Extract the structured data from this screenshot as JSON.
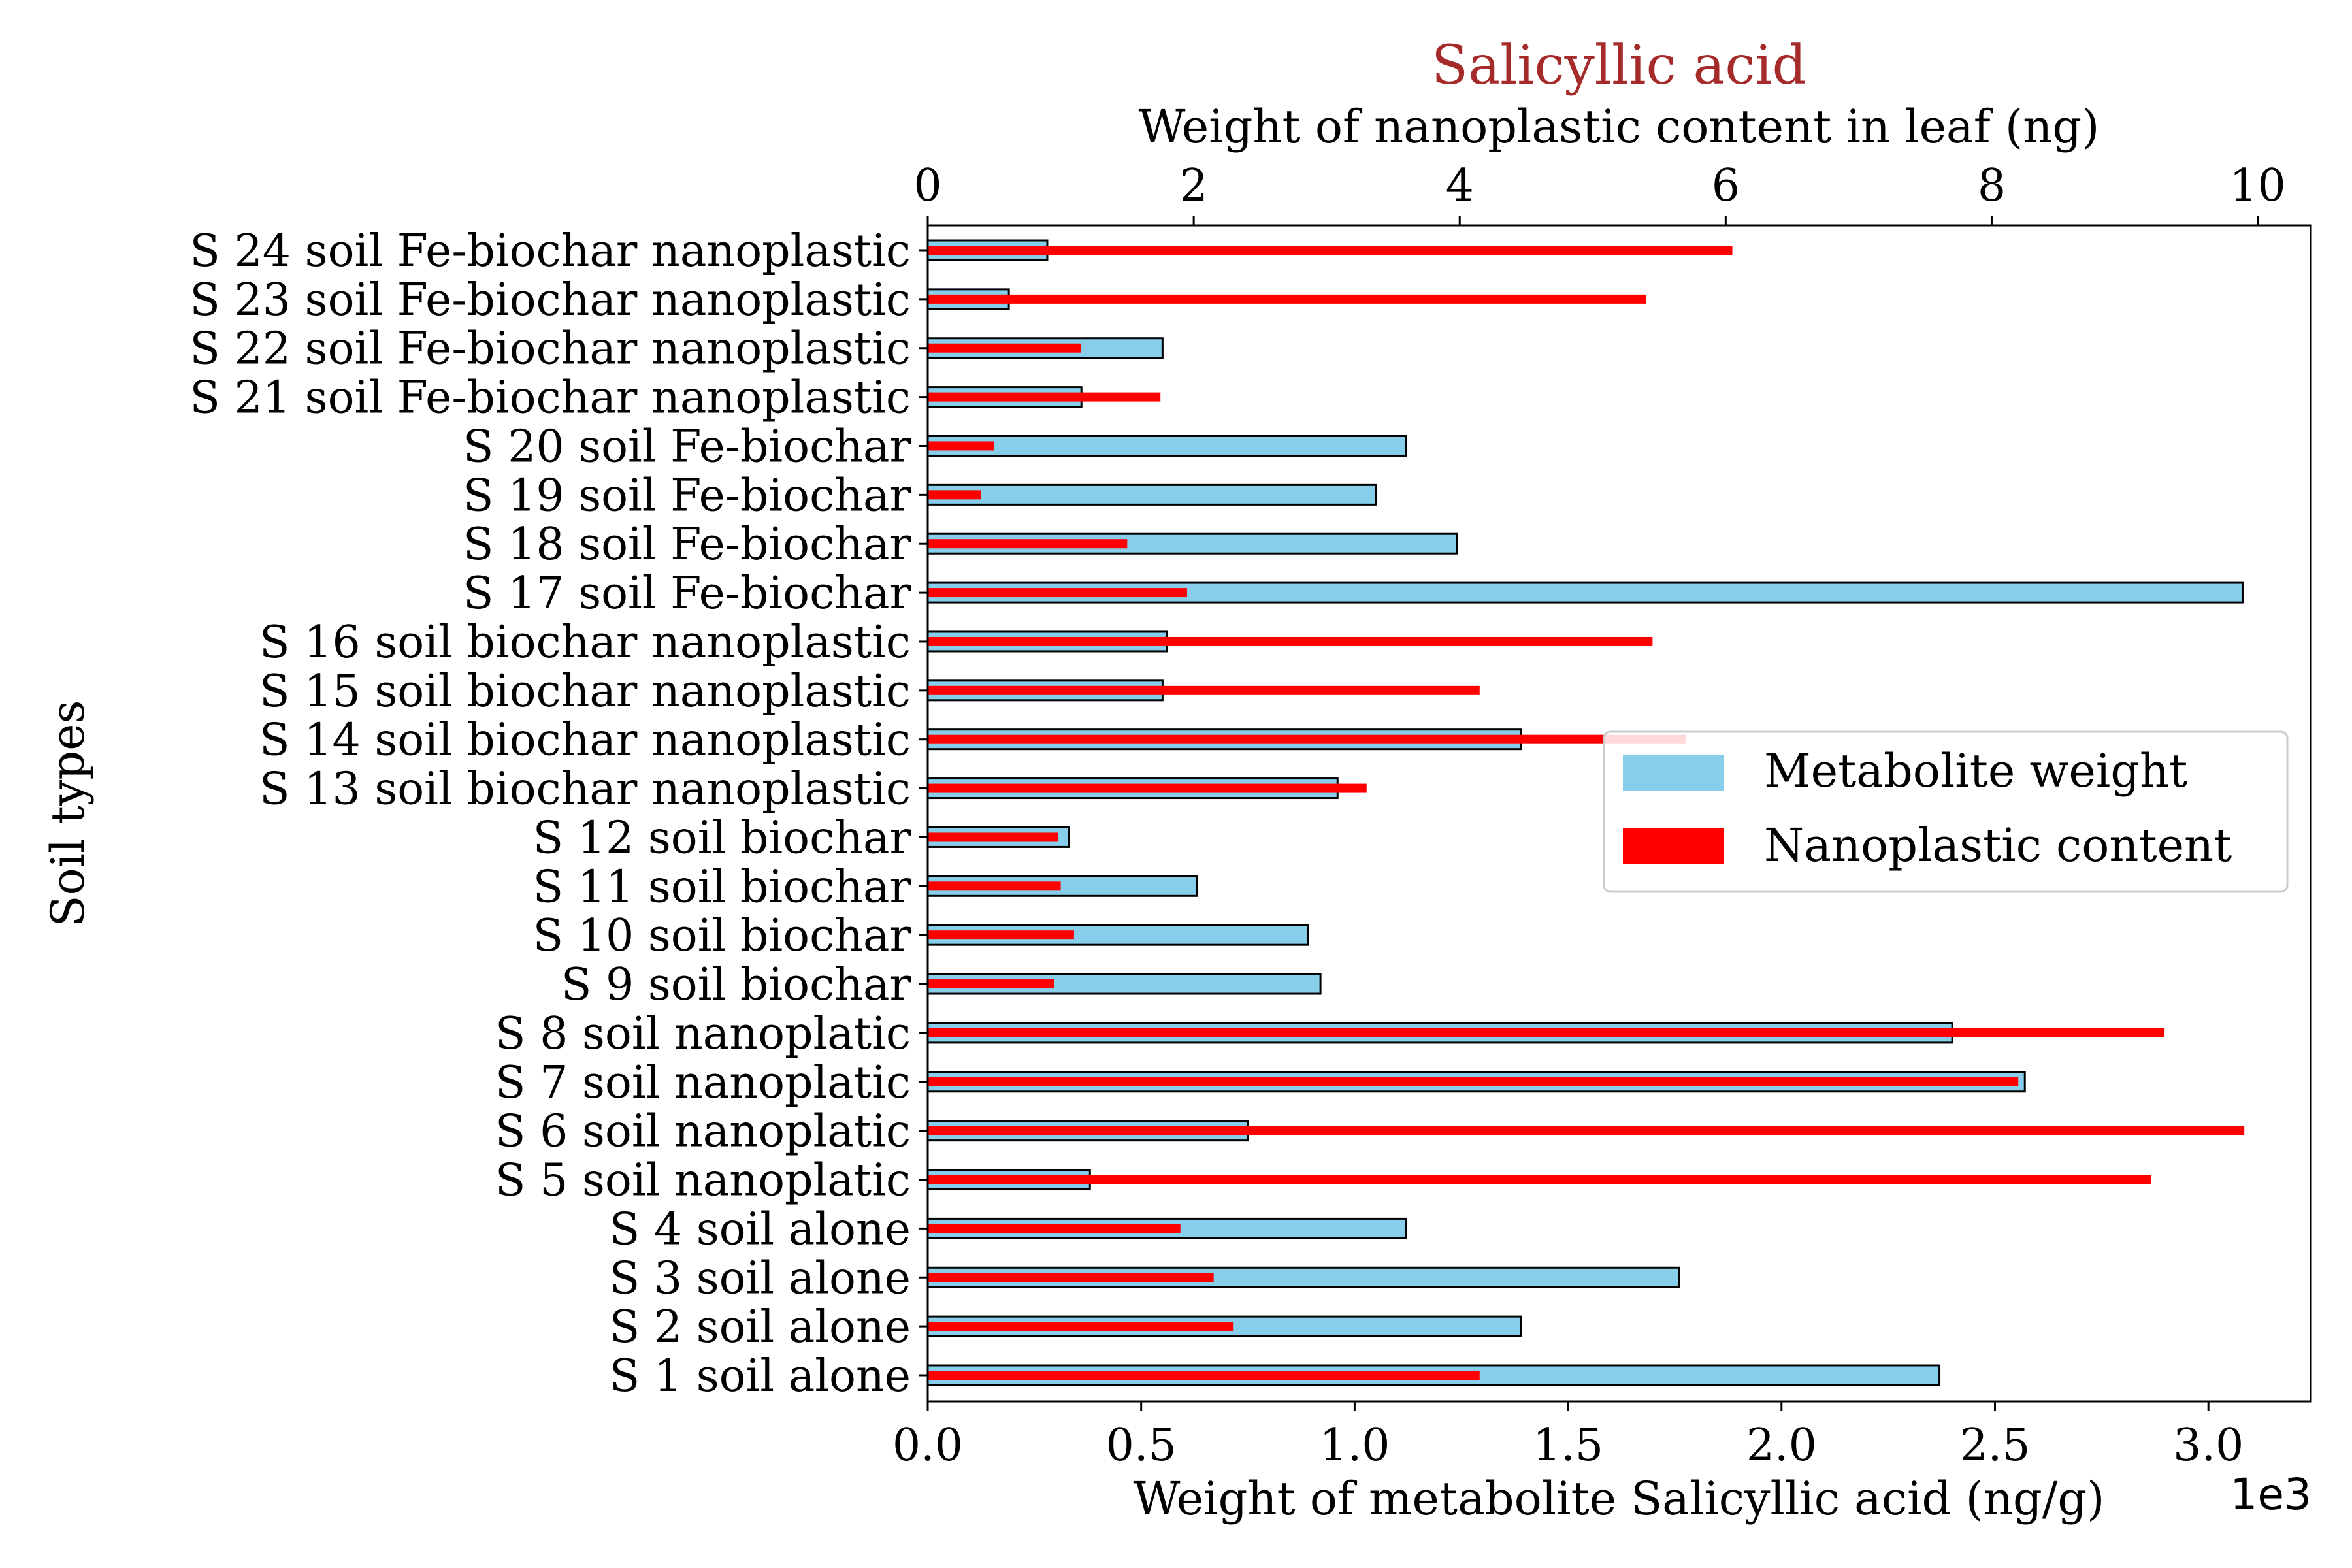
{
  "chart_data": {
    "type": "bar",
    "orientation": "horizontal",
    "title": "Salicyllic acid",
    "title_color": "#a52a2a",
    "xlabel_bottom": "Weight of metabolite Salicyllic acid (ng/g)",
    "xlabel_top": "Weight of nanoplastic content in leaf (ng)",
    "ylabel": "Soil types",
    "x_offset_label": "1e3",
    "xlim_bottom": [
      0,
      3.24
    ],
    "xlim_top": [
      0,
      10.4
    ],
    "xticks_bottom": [
      "0.0",
      "0.5",
      "1.0",
      "1.5",
      "2.0",
      "2.5",
      "3.0"
    ],
    "xticks_top": [
      "0",
      "2",
      "4",
      "6",
      "8",
      "10"
    ],
    "grid": false,
    "legend_position": "center-right",
    "categories": [
      "S 1 soil alone",
      "S 2 soil alone",
      "S 3 soil alone",
      "S 4 soil alone",
      "S 5 soil nanoplatic",
      "S 6 soil nanoplatic",
      "S 7 soil nanoplatic",
      "S 8 soil nanoplatic",
      "S 9 soil biochar",
      "S 10 soil biochar",
      "S 11 soil biochar",
      "S 12 soil biochar",
      "S 13 soil biochar nanoplastic",
      "S 14 soil biochar nanoplastic",
      "S 15 soil biochar nanoplastic",
      "S 16 soil biochar nanoplastic",
      "S 17 soil Fe-biochar",
      "S 18 soil Fe-biochar",
      "S 19 soil Fe-biochar",
      "S 20 soil Fe-biochar",
      "S 21 soil Fe-biochar nanoplastic",
      "S 22 soil Fe-biochar nanoplastic",
      "S 23 soil Fe-biochar nanoplastic",
      "S 24 soil Fe-biochar nanoplastic"
    ],
    "series": [
      {
        "name": "Metabolite weight",
        "axis": "bottom",
        "color": "#87ceeb",
        "values": [
          2.37,
          1.39,
          1.76,
          1.12,
          0.38,
          0.75,
          2.57,
          2.4,
          0.92,
          0.89,
          0.63,
          0.33,
          0.96,
          1.39,
          0.55,
          0.56,
          3.08,
          1.24,
          1.05,
          1.12,
          0.36,
          0.55,
          0.19,
          0.28
        ]
      },
      {
        "name": "Nanoplastic content",
        "axis": "top",
        "color": "#ff0000",
        "values": [
          4.15,
          2.3,
          2.15,
          1.9,
          9.2,
          9.9,
          8.2,
          9.3,
          0.95,
          1.1,
          1.0,
          0.98,
          3.3,
          5.7,
          4.15,
          5.45,
          1.95,
          1.5,
          0.4,
          0.5,
          1.75,
          1.15,
          5.4,
          6.05
        ]
      }
    ]
  }
}
